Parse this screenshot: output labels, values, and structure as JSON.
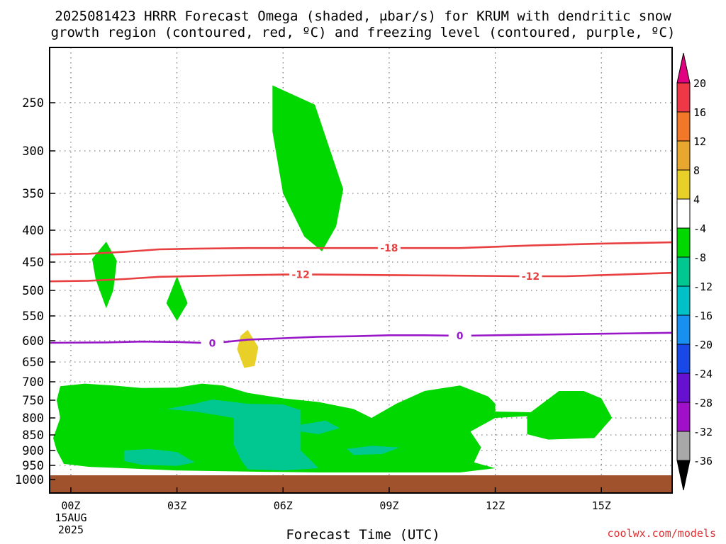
{
  "title_line1": "2025081423 HRRR Forecast Omega (shaded, μbar/s) for KRUM with dendritic snow",
  "title_line2": "growth region (contoured, red, ºC) and freezing level (contoured, purple, ºC)",
  "credit": "coolwx.com/models",
  "chart_data": {
    "type": "contour-crosssection",
    "title": "2025081423 HRRR Forecast Omega (shaded, μbar/s) for KRUM with dendritic snow growth region (contoured, red, ºC) and freezing level (contoured, purple, ºC)",
    "xlabel": "Forecast Time (UTC)",
    "ylabel": "",
    "x_ticks": [
      {
        "hour": 0,
        "label": "00Z"
      },
      {
        "hour": 3,
        "label": "03Z"
      },
      {
        "hour": 6,
        "label": "06Z"
      },
      {
        "hour": 9,
        "label": "09Z"
      },
      {
        "hour": 12,
        "label": "12Z"
      },
      {
        "hour": 15,
        "label": "15Z"
      }
    ],
    "x_date_label": "15AUG",
    "x_year_label": "2025",
    "xlim": [
      -0.6,
      17
    ],
    "y_ticks": [
      250,
      300,
      350,
      400,
      450,
      500,
      550,
      600,
      650,
      700,
      750,
      800,
      850,
      900,
      950,
      1000
    ],
    "y_label_values": [
      "250",
      "300",
      "350",
      "400",
      "450",
      "500",
      "550",
      "600",
      "650",
      "700",
      "750",
      "800",
      "850",
      "900",
      "950",
      "1000"
    ],
    "ylim_hPa": [
      1030,
      200
    ],
    "grid": true,
    "colorbar": {
      "labels": [
        "20",
        "16",
        "12",
        "8",
        "4",
        "-4",
        "-8",
        "-12",
        "-16",
        "-20",
        "-24",
        "-28",
        "-32",
        "-36"
      ],
      "colors": [
        "#ee3848",
        "#f07828",
        "#e8a830",
        "#e8d028",
        "#ffffff",
        "#00d800",
        "#00c890",
        "#00c0c8",
        "#1890f0",
        "#1848e8",
        "#6810d0",
        "#a010c8",
        "#a8a8a8"
      ],
      "top_arrow_color": "#e00080",
      "bottom_arrow_color": "#000000"
    },
    "contours": [
      {
        "name": "-18",
        "color": "#e84040",
        "label_hour": 9.0,
        "points": [
          [
            -0.6,
            438
          ],
          [
            0.5,
            437
          ],
          [
            1.5,
            434
          ],
          [
            2.5,
            430
          ],
          [
            3.5,
            429
          ],
          [
            5,
            428
          ],
          [
            7,
            428
          ],
          [
            9,
            428
          ],
          [
            11,
            428
          ],
          [
            13,
            424
          ],
          [
            15,
            421
          ],
          [
            17,
            419
          ]
        ]
      },
      {
        "name": "-12",
        "color": "#e84040",
        "label_hour": 6.5,
        "label2_hour": 13.0,
        "points": [
          [
            -0.6,
            484
          ],
          [
            0.5,
            483
          ],
          [
            1.5,
            480
          ],
          [
            2.5,
            476
          ],
          [
            4,
            474
          ],
          [
            6,
            472
          ],
          [
            7,
            472
          ],
          [
            9,
            473
          ],
          [
            11,
            474
          ],
          [
            12.7,
            475
          ],
          [
            14,
            475
          ],
          [
            15,
            473
          ],
          [
            17,
            469
          ]
        ]
      },
      {
        "name": "0",
        "color": "#9818c8",
        "label_hour": 4.0,
        "label2_hour": 11.0,
        "points": [
          [
            -0.6,
            605
          ],
          [
            1,
            604
          ],
          [
            2,
            602
          ],
          [
            3,
            603
          ],
          [
            4,
            606
          ],
          [
            5,
            598
          ],
          [
            6,
            595
          ],
          [
            7,
            592
          ],
          [
            8,
            591
          ],
          [
            9,
            589
          ],
          [
            10,
            589
          ],
          [
            11,
            590
          ],
          [
            12,
            589
          ],
          [
            13,
            588
          ],
          [
            15,
            586
          ],
          [
            17,
            584
          ]
        ]
      }
    ],
    "omega_regions": [
      {
        "level": "-4",
        "color": "#00d800",
        "points": [
          [
            5.7,
            233
          ],
          [
            6.9,
            252
          ],
          [
            7.7,
            345
          ],
          [
            7.5,
            395
          ],
          [
            7.1,
            433
          ],
          [
            6.6,
            410
          ],
          [
            6.0,
            350
          ],
          [
            5.7,
            280
          ]
        ]
      },
      {
        "level": "-4",
        "color": "#00d800",
        "points": [
          [
            1.0,
            418
          ],
          [
            1.3,
            448
          ],
          [
            1.2,
            500
          ],
          [
            1.0,
            535
          ],
          [
            0.7,
            480
          ],
          [
            0.6,
            445
          ]
        ]
      },
      {
        "level": "-4",
        "color": "#00d800",
        "points": [
          [
            3.0,
            475
          ],
          [
            3.3,
            525
          ],
          [
            3.0,
            560
          ],
          [
            2.7,
            525
          ]
        ]
      },
      {
        "level": "4",
        "color": "#e8d028",
        "points": [
          [
            5.0,
            578
          ],
          [
            5.3,
            615
          ],
          [
            5.2,
            660
          ],
          [
            4.9,
            665
          ],
          [
            4.7,
            620
          ],
          [
            4.8,
            590
          ]
        ]
      },
      {
        "level": "-4",
        "color": "#00d800",
        "points": [
          [
            -0.4,
            750
          ],
          [
            -0.3,
            712
          ],
          [
            0.4,
            705
          ],
          [
            1.2,
            710
          ],
          [
            2.0,
            717
          ],
          [
            3.0,
            716
          ],
          [
            3.7,
            705
          ],
          [
            4.3,
            710
          ],
          [
            5.0,
            730
          ],
          [
            6.0,
            745
          ],
          [
            7.0,
            755
          ],
          [
            8.0,
            775
          ],
          [
            8.5,
            800
          ],
          [
            9.2,
            760
          ],
          [
            10.0,
            725
          ],
          [
            11.0,
            710
          ],
          [
            11.8,
            740
          ],
          [
            12.0,
            760
          ],
          [
            12.0,
            782
          ],
          [
            13.0,
            784
          ],
          [
            13.8,
            725
          ],
          [
            14.5,
            725
          ],
          [
            15.0,
            745
          ],
          [
            15.3,
            800
          ],
          [
            14.8,
            860
          ],
          [
            13.5,
            865
          ],
          [
            12.9,
            848
          ],
          [
            12.9,
            795
          ],
          [
            12.0,
            800
          ],
          [
            11.3,
            840
          ],
          [
            11.6,
            890
          ],
          [
            11.4,
            940
          ],
          [
            12.0,
            960
          ],
          [
            11.0,
            975
          ],
          [
            9.0,
            975
          ],
          [
            7.0,
            975
          ],
          [
            5.0,
            972
          ],
          [
            3.0,
            968
          ],
          [
            1.5,
            960
          ],
          [
            0.5,
            955
          ],
          [
            -0.2,
            945
          ],
          [
            -0.4,
            900
          ],
          [
            -0.5,
            860
          ],
          [
            -0.3,
            800
          ]
        ]
      },
      {
        "level": "-8",
        "color": "#00c890",
        "points": [
          [
            2.7,
            775
          ],
          [
            3.5,
            760
          ],
          [
            4.0,
            748
          ],
          [
            5.0,
            760
          ],
          [
            6.0,
            762
          ],
          [
            6.5,
            778
          ],
          [
            6.5,
            900
          ],
          [
            6.8,
            935
          ],
          [
            7.0,
            960
          ],
          [
            6.0,
            968
          ],
          [
            5.0,
            964
          ],
          [
            4.8,
            930
          ],
          [
            4.6,
            880
          ],
          [
            4.6,
            800
          ],
          [
            4.0,
            790
          ],
          [
            3.5,
            782
          ]
        ]
      },
      {
        "level": "-8",
        "color": "#00c890",
        "points": [
          [
            1.5,
            900
          ],
          [
            2.2,
            895
          ],
          [
            3.0,
            905
          ],
          [
            3.5,
            940
          ],
          [
            3.0,
            952
          ],
          [
            2.0,
            948
          ],
          [
            1.5,
            935
          ]
        ]
      },
      {
        "level": "-8",
        "color": "#00c890",
        "points": [
          [
            6.5,
            820
          ],
          [
            7.2,
            808
          ],
          [
            7.6,
            830
          ],
          [
            7.0,
            848
          ],
          [
            6.5,
            840
          ]
        ]
      },
      {
        "level": "-8",
        "color": "#00c890",
        "points": [
          [
            7.8,
            895
          ],
          [
            8.5,
            885
          ],
          [
            9.3,
            890
          ],
          [
            8.8,
            912
          ],
          [
            8.0,
            915
          ]
        ]
      }
    ],
    "ground": {
      "color": "#a0522d",
      "from_hPa": 985,
      "label": ""
    }
  }
}
